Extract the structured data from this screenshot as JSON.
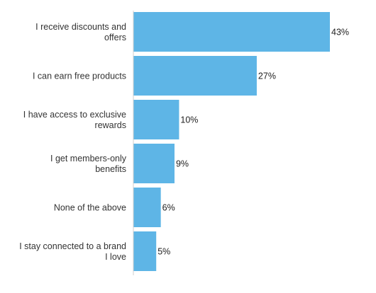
{
  "chart_data": {
    "type": "bar",
    "orientation": "horizontal",
    "categories": [
      [
        "I receive discounts and",
        "offers"
      ],
      [
        "I can earn free products"
      ],
      [
        "I have access to exclusive",
        "rewards"
      ],
      [
        "I get members-only",
        "benefits"
      ],
      [
        "None of the above"
      ],
      [
        "I stay connected to a brand",
        "I love"
      ]
    ],
    "values": [
      43,
      27,
      10,
      9,
      6,
      5
    ],
    "data_labels": [
      "43%",
      "27%",
      "10%",
      "9%",
      "6%",
      "5%"
    ],
    "unit": "%",
    "xlim": [
      0,
      43
    ],
    "grid": false,
    "legend": "none",
    "colors": {
      "bar": "#5EB5E6",
      "axis": "#cfcfcf",
      "label": "#333333",
      "value_label": "#222222"
    }
  }
}
